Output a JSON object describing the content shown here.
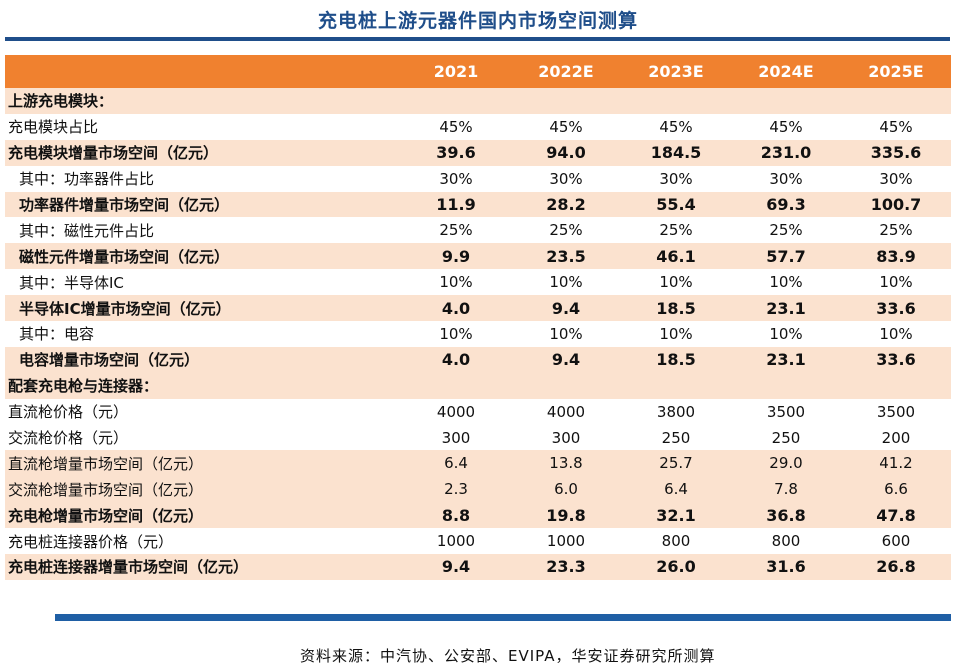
{
  "title": "充电桩上游元器件国内市场空间测算",
  "table": {
    "headers": [
      "",
      "2021",
      "2022E",
      "2023E",
      "2024E",
      "2025E"
    ],
    "rows": [
      {
        "label": "上游充电模块：",
        "values": [
          "",
          "",
          "",
          "",
          ""
        ],
        "style": "section",
        "shade": true
      },
      {
        "label": "充电模块占比",
        "values": [
          "45%",
          "45%",
          "45%",
          "45%",
          "45%"
        ],
        "style": "normal",
        "shade": false
      },
      {
        "label": "充电模块增量市场空间（亿元）",
        "values": [
          "39.6",
          "94.0",
          "184.5",
          "231.0",
          "335.6"
        ],
        "style": "bold",
        "shade": true
      },
      {
        "label": "其中：功率器件占比",
        "values": [
          "30%",
          "30%",
          "30%",
          "30%",
          "30%"
        ],
        "style": "indent",
        "shade": false
      },
      {
        "label": "功率器件增量市场空间（亿元）",
        "values": [
          "11.9",
          "28.2",
          "55.4",
          "69.3",
          "100.7"
        ],
        "style": "indent-bold",
        "shade": true
      },
      {
        "label": "其中：磁性元件占比",
        "values": [
          "25%",
          "25%",
          "25%",
          "25%",
          "25%"
        ],
        "style": "indent",
        "shade": false
      },
      {
        "label": "磁性元件增量市场空间（亿元）",
        "values": [
          "9.9",
          "23.5",
          "46.1",
          "57.7",
          "83.9"
        ],
        "style": "indent-bold",
        "shade": true
      },
      {
        "label": "其中：半导体IC",
        "values": [
          "10%",
          "10%",
          "10%",
          "10%",
          "10%"
        ],
        "style": "indent",
        "shade": false
      },
      {
        "label": "半导体IC增量市场空间（亿元）",
        "values": [
          "4.0",
          "9.4",
          "18.5",
          "23.1",
          "33.6"
        ],
        "style": "indent-bold",
        "shade": true
      },
      {
        "label": "其中：电容",
        "values": [
          "10%",
          "10%",
          "10%",
          "10%",
          "10%"
        ],
        "style": "indent",
        "shade": false
      },
      {
        "label": "电容增量市场空间（亿元）",
        "values": [
          "4.0",
          "9.4",
          "18.5",
          "23.1",
          "33.6"
        ],
        "style": "indent-bold",
        "shade": true
      },
      {
        "label": "配套充电枪与连接器：",
        "values": [
          "",
          "",
          "",
          "",
          ""
        ],
        "style": "section",
        "shade": true
      },
      {
        "label": "直流枪价格（元）",
        "values": [
          "4000",
          "4000",
          "3800",
          "3500",
          "3500"
        ],
        "style": "normal",
        "shade": false
      },
      {
        "label": "交流枪价格（元）",
        "values": [
          "300",
          "300",
          "250",
          "250",
          "200"
        ],
        "style": "normal",
        "shade": false
      },
      {
        "label": "直流枪增量市场空间（亿元）",
        "values": [
          "6.4",
          "13.8",
          "25.7",
          "29.0",
          "41.2"
        ],
        "style": "normal",
        "shade": true
      },
      {
        "label": "交流枪增量市场空间（亿元）",
        "values": [
          "2.3",
          "6.0",
          "6.4",
          "7.8",
          "6.6"
        ],
        "style": "normal",
        "shade": true
      },
      {
        "label": "充电枪增量市场空间（亿元）",
        "values": [
          "8.8",
          "19.8",
          "32.1",
          "36.8",
          "47.8"
        ],
        "style": "bold",
        "shade": true
      },
      {
        "label": "充电桩连接器价格（元）",
        "values": [
          "1000",
          "1000",
          "800",
          "800",
          "600"
        ],
        "style": "normal",
        "shade": false
      },
      {
        "label": "充电桩连接器增量市场空间（亿元）",
        "values": [
          "9.4",
          "23.3",
          "26.0",
          "31.6",
          "26.8"
        ],
        "style": "bold",
        "shade": true
      }
    ]
  },
  "source": "资料来源：中汽协、公安部、EVIPA，华安证券研究所测算",
  "colors": {
    "header_bg": "#f0812f",
    "shade": "#fbe2cf",
    "title": "#1f4e8a",
    "rule": "#1f5fa5"
  }
}
